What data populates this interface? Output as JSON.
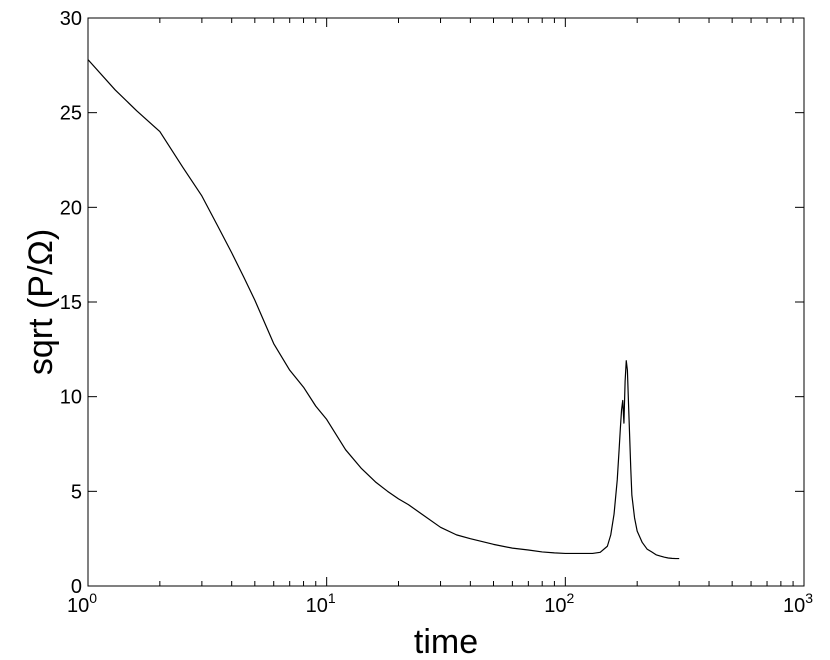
{
  "chart_data": {
    "type": "line",
    "xlabel": "time",
    "ylabel": "sqrt (P/Ω)",
    "xscale": "log",
    "xlim": [
      1,
      1000
    ],
    "ylim": [
      0,
      30
    ],
    "grid": false,
    "x_ticks": [
      {
        "base": "10",
        "exp": "0"
      },
      {
        "base": "10",
        "exp": "1"
      },
      {
        "base": "10",
        "exp": "2"
      },
      {
        "base": "10",
        "exp": "3"
      }
    ],
    "y_ticks": [
      "0",
      "5",
      "10",
      "15",
      "20",
      "25",
      "30"
    ],
    "series": [
      {
        "color": "#000000",
        "x": [
          1,
          1.3,
          1.6,
          2,
          2.5,
          3,
          3.5,
          4,
          4.5,
          5,
          6,
          7,
          8,
          9,
          10,
          12,
          14,
          16,
          18,
          20,
          22,
          25,
          30,
          35,
          40,
          50,
          60,
          70,
          80,
          90,
          100,
          110,
          120,
          130,
          140,
          150,
          155,
          160,
          165,
          168,
          170,
          172,
          174,
          176,
          178,
          180,
          182,
          184,
          186,
          188,
          190,
          195,
          200,
          210,
          220,
          230,
          240,
          250,
          260,
          270,
          280,
          290,
          300
        ],
        "y": [
          27.8,
          26.2,
          25.1,
          24.0,
          22.1,
          20.6,
          19.0,
          17.6,
          16.3,
          15.1,
          12.8,
          11.4,
          10.5,
          9.5,
          8.8,
          7.2,
          6.2,
          5.5,
          5.0,
          4.6,
          4.3,
          3.8,
          3.1,
          2.7,
          2.5,
          2.2,
          2.0,
          1.9,
          1.8,
          1.75,
          1.72,
          1.72,
          1.72,
          1.72,
          1.78,
          2.1,
          2.7,
          3.8,
          5.6,
          7.2,
          8.3,
          9.3,
          9.8,
          8.6,
          10.8,
          11.9,
          11.4,
          9.6,
          7.9,
          6.2,
          4.8,
          3.6,
          2.9,
          2.3,
          1.95,
          1.8,
          1.65,
          1.58,
          1.52,
          1.48,
          1.46,
          1.45,
          1.45
        ]
      }
    ]
  }
}
